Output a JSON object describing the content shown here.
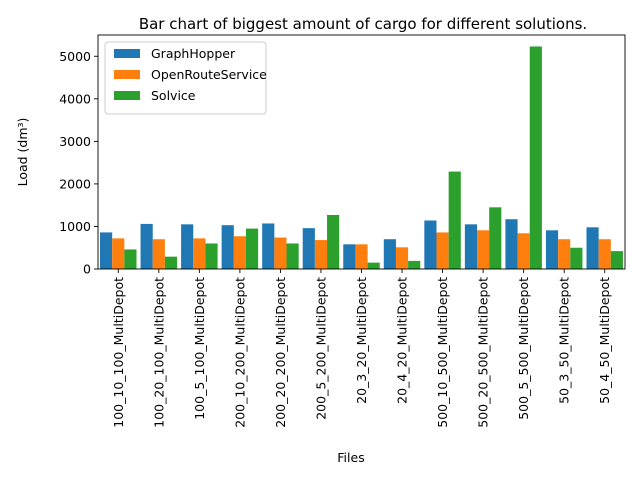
{
  "chart_data": {
    "type": "bar",
    "title": "Bar chart of biggest amount of cargo for different solutions.",
    "xlabel": "Files",
    "ylabel": "Load (dm³)",
    "ylim": [
      0,
      5500
    ],
    "yticks": [
      0,
      1000,
      2000,
      3000,
      4000,
      5000
    ],
    "grid": false,
    "legend_position": "top-left",
    "categories": [
      "100_10_100_MultiDepot",
      "100_20_100_MultiDepot",
      "100_5_100_MultiDepot",
      "200_10_200_MultiDepot",
      "200_20_200_MultiDepot",
      "200_5_200_MultiDepot",
      "20_3_20_MultiDepot",
      "20_4_20_MultiDepot",
      "500_10_500_MultiDepot",
      "500_20_500_MultiDepot",
      "500_5_500_MultiDepot",
      "50_3_50_MultiDepot",
      "50_4_50_MultiDepot"
    ],
    "series": [
      {
        "name": "GraphHopper",
        "color": "#1f77b4",
        "values": [
          860,
          1060,
          1050,
          1030,
          1070,
          960,
          580,
          700,
          1140,
          1050,
          1170,
          910,
          980
        ]
      },
      {
        "name": "OpenRouteService",
        "color": "#ff7f0e",
        "values": [
          720,
          700,
          720,
          770,
          740,
          680,
          580,
          510,
          860,
          910,
          840,
          700,
          700
        ]
      },
      {
        "name": "Solvice",
        "color": "#2ca02c",
        "values": [
          460,
          290,
          600,
          950,
          600,
          1270,
          150,
          190,
          2290,
          1450,
          5230,
          500,
          420
        ]
      }
    ]
  }
}
